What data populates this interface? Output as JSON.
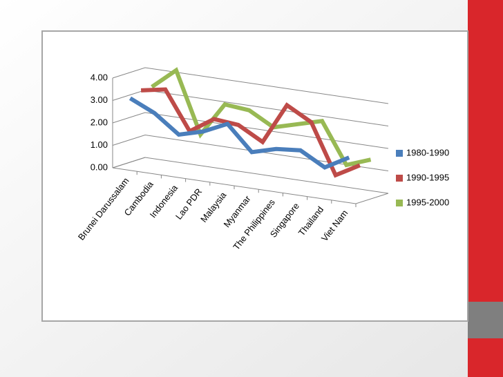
{
  "chart_data": {
    "type": "line",
    "categories": [
      "Brunei Darussalam",
      "Cambodia",
      "Indonesia",
      "Lao PDR",
      "Malaysia",
      "Myanmar",
      "The Philippines",
      "Singapore",
      "Thailand",
      "Viet Nam"
    ],
    "series": [
      {
        "name": "1980-1990",
        "color": "#4a7ebb",
        "values": [
          3.1,
          2.6,
          1.8,
          2.1,
          2.6,
          1.5,
          1.8,
          1.9,
          1.3,
          1.9
        ]
      },
      {
        "name": "1990-1995",
        "color": "#be4b48",
        "values": [
          3.3,
          3.5,
          1.8,
          2.5,
          2.4,
          1.8,
          3.6,
          3.0,
          0.8,
          1.4
        ]
      },
      {
        "name": "1995-2000",
        "color": "#98b954",
        "values": [
          3.3,
          4.2,
          1.5,
          3.0,
          2.9,
          2.3,
          2.6,
          2.9,
          1.1,
          1.5
        ]
      }
    ],
    "ylim": [
      0,
      4
    ],
    "yticks": [
      {
        "value": 0,
        "label": "0.00"
      },
      {
        "value": 1,
        "label": "1.00"
      },
      {
        "value": 2,
        "label": "2.00"
      },
      {
        "value": 3,
        "label": "3.00"
      },
      {
        "value": 4,
        "label": "4.00"
      }
    ],
    "grid": true,
    "legend": "right"
  }
}
